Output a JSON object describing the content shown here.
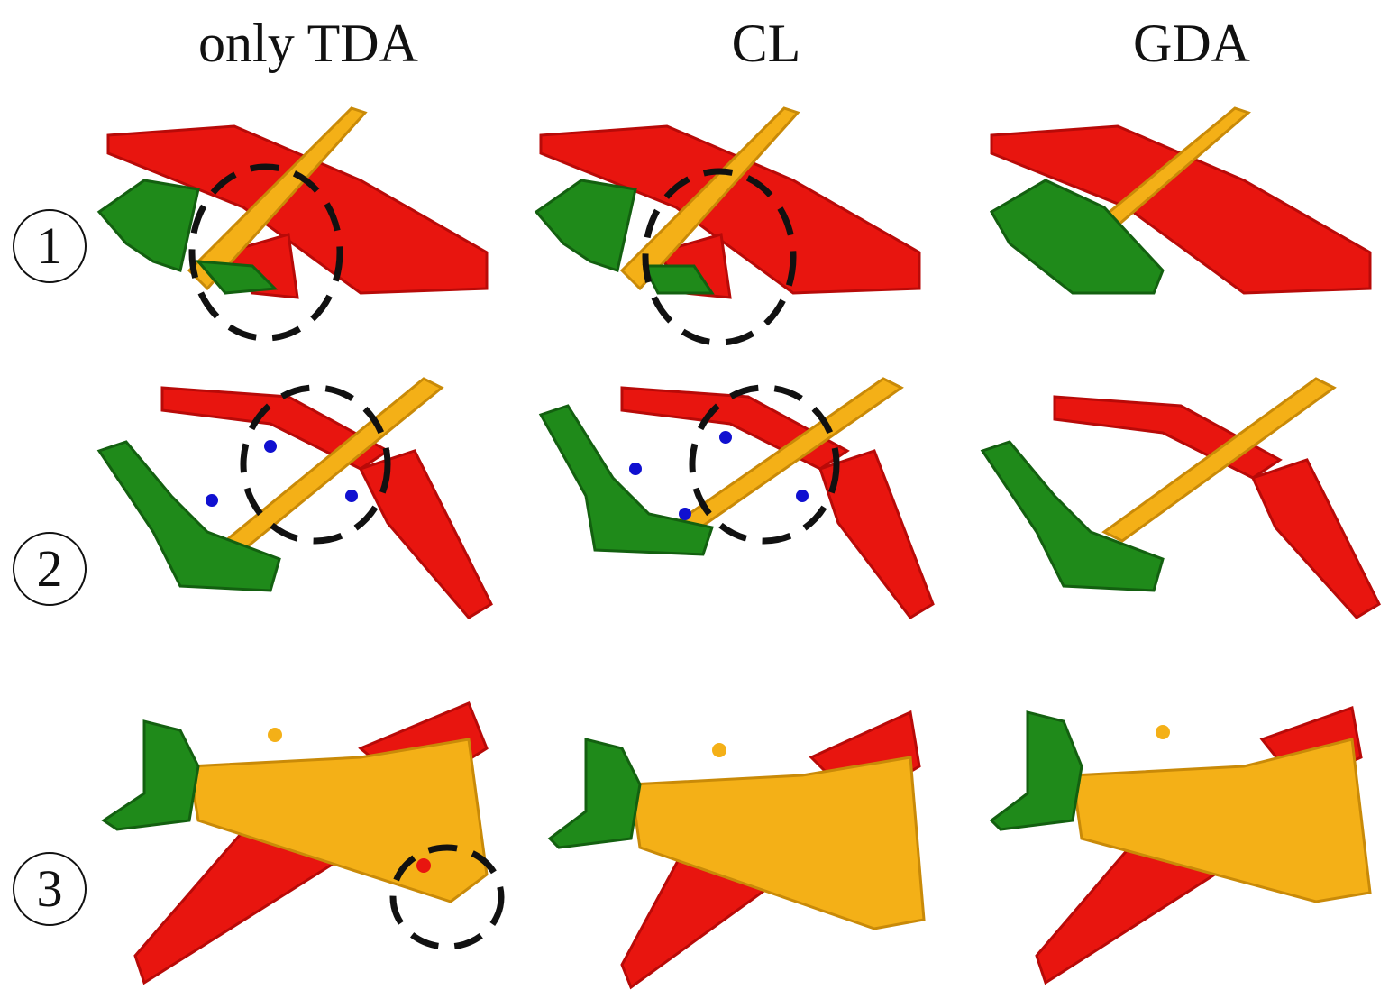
{
  "columns": [
    {
      "label": "only TDA"
    },
    {
      "label": "CL"
    },
    {
      "label": "GDA"
    }
  ],
  "rows": [
    {
      "marker": "1"
    },
    {
      "marker": "2"
    },
    {
      "marker": "3"
    }
  ],
  "colors": {
    "wing": "#e8150f",
    "body": "#f4b017",
    "tail": "#1f8a1a",
    "misclassified": "#1010d0",
    "highlight_circle": "#111111"
  },
  "highlights": [
    {
      "row": 1,
      "column": "only TDA"
    },
    {
      "row": 1,
      "column": "CL"
    },
    {
      "row": 2,
      "column": "only TDA"
    },
    {
      "row": 2,
      "column": "CL"
    },
    {
      "row": 3,
      "column": "only TDA"
    }
  ]
}
